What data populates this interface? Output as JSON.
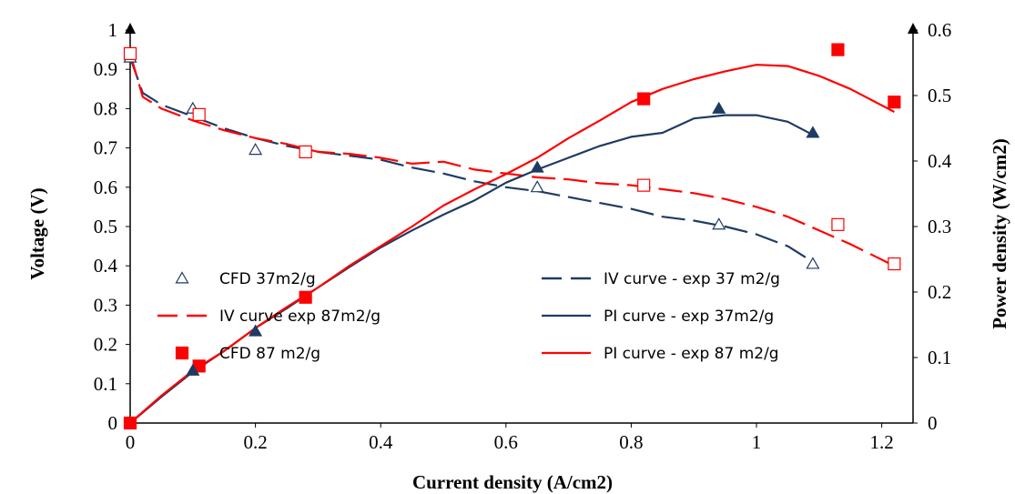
{
  "chart_data": {
    "type": "line",
    "xlabel": "Current density (A/cm2)",
    "ylabel": "Voltage (V)",
    "y2label": "Power density (W/cm2)",
    "xlim": [
      0,
      1.25
    ],
    "ylim": [
      0,
      1
    ],
    "y2lim": [
      0,
      0.6
    ],
    "xticks": [
      "0",
      "0.2",
      "0.4",
      "0.6",
      "0.8",
      "1",
      "1.2"
    ],
    "yticks": [
      "0",
      "0.1",
      "0.2",
      "0.3",
      "0.4",
      "0.5",
      "0.6",
      "0.7",
      "0.8",
      "0.9",
      "1"
    ],
    "y2ticks": [
      "0",
      "0.1",
      "0.2",
      "0.3",
      "0.4",
      "0.5",
      "0.6"
    ],
    "grid": false,
    "legend_position": "bottom-center",
    "colors": {
      "blue": "#1f3b63",
      "red": "#ff0000"
    },
    "series": [
      {
        "name": "CFD 37m2/g",
        "kind": "scatter",
        "marker": "triangle-open",
        "color": "#1f3b63",
        "axis": "left",
        "x": [
          0,
          0.1,
          0.2,
          0.28,
          0.65,
          0.94,
          1.09
        ],
        "y": [
          0.93,
          0.8,
          0.695,
          0.69,
          0.6,
          0.505,
          0.405
        ]
      },
      {
        "name": "IV curve - exp 37 m2/g",
        "kind": "line",
        "dash": "long",
        "color": "#1f3b63",
        "axis": "left",
        "x": [
          0,
          0.02,
          0.05,
          0.1,
          0.15,
          0.2,
          0.25,
          0.3,
          0.35,
          0.4,
          0.45,
          0.5,
          0.55,
          0.6,
          0.65,
          0.7,
          0.75,
          0.8,
          0.85,
          0.9,
          0.95,
          1.0,
          1.05,
          1.09
        ],
        "y": [
          0.93,
          0.84,
          0.81,
          0.78,
          0.75,
          0.725,
          0.705,
          0.69,
          0.68,
          0.67,
          0.65,
          0.635,
          0.615,
          0.6,
          0.59,
          0.575,
          0.56,
          0.545,
          0.525,
          0.515,
          0.5,
          0.48,
          0.45,
          0.41
        ]
      },
      {
        "name": "IV curve exp 87m2/g",
        "kind": "line",
        "dash": "long",
        "color": "#ff0000",
        "axis": "left",
        "x": [
          0,
          0.02,
          0.05,
          0.1,
          0.15,
          0.2,
          0.25,
          0.3,
          0.35,
          0.4,
          0.45,
          0.5,
          0.55,
          0.6,
          0.65,
          0.7,
          0.75,
          0.8,
          0.85,
          0.9,
          0.95,
          1.0,
          1.05,
          1.1,
          1.15,
          1.22
        ],
        "y": [
          0.94,
          0.83,
          0.8,
          0.77,
          0.745,
          0.725,
          0.71,
          0.69,
          0.685,
          0.675,
          0.66,
          0.665,
          0.645,
          0.635,
          0.625,
          0.62,
          0.61,
          0.605,
          0.595,
          0.585,
          0.57,
          0.55,
          0.525,
          0.49,
          0.455,
          0.4
        ]
      },
      {
        "name": "PI curve - exp 37m2/g",
        "kind": "line",
        "dash": "solid",
        "color": "#1f3b63",
        "axis": "right",
        "x": [
          0,
          0.05,
          0.1,
          0.15,
          0.2,
          0.25,
          0.3,
          0.35,
          0.4,
          0.45,
          0.5,
          0.55,
          0.6,
          0.65,
          0.7,
          0.75,
          0.8,
          0.85,
          0.9,
          0.95,
          1.0,
          1.05,
          1.09
        ],
        "y": [
          0,
          0.04,
          0.078,
          0.11,
          0.145,
          0.175,
          0.207,
          0.238,
          0.268,
          0.294,
          0.318,
          0.34,
          0.367,
          0.387,
          0.405,
          0.423,
          0.437,
          0.443,
          0.465,
          0.47,
          0.47,
          0.46,
          0.44
        ]
      },
      {
        "name": "CFD 87 m2/g",
        "kind": "scatter",
        "marker": "square",
        "color": "#ff0000",
        "axis": "right",
        "x": [
          0,
          0.11,
          0.28,
          0.82,
          1.13,
          1.22
        ],
        "y": [
          0,
          0.087,
          0.192,
          0.495,
          0.57,
          0.49
        ]
      },
      {
        "name": "PI curve - exp 87 m2/g",
        "kind": "line",
        "dash": "solid",
        "color": "#ff0000",
        "axis": "right",
        "x": [
          0,
          0.05,
          0.1,
          0.15,
          0.2,
          0.25,
          0.3,
          0.35,
          0.4,
          0.45,
          0.5,
          0.55,
          0.6,
          0.65,
          0.7,
          0.75,
          0.8,
          0.85,
          0.9,
          0.95,
          1.0,
          1.05,
          1.1,
          1.15,
          1.22
        ],
        "y": [
          0,
          0.042,
          0.08,
          0.11,
          0.145,
          0.177,
          0.207,
          0.24,
          0.27,
          0.3,
          0.332,
          0.357,
          0.38,
          0.405,
          0.435,
          0.462,
          0.49,
          0.51,
          0.525,
          0.537,
          0.547,
          0.545,
          0.53,
          0.51,
          0.475
        ]
      },
      {
        "name": "",
        "kind": "scatter",
        "marker": "triangle-filled",
        "color": "#1f3b63",
        "axis": "right",
        "x": [
          0.1,
          0.2,
          0.65,
          0.94,
          1.09
        ],
        "y": [
          0.08,
          0.14,
          0.39,
          0.48,
          0.443
        ]
      },
      {
        "name": "",
        "kind": "scatter",
        "marker": "square-open",
        "color": "#ff0000",
        "axis": "left",
        "x": [
          0,
          0.11,
          0.28,
          0.82,
          1.13,
          1.22
        ],
        "y": [
          0.94,
          0.785,
          0.69,
          0.605,
          0.505,
          0.405
        ]
      }
    ],
    "legend": [
      {
        "label": "CFD 37m2/g",
        "marker": "triangle-open",
        "color": "#1f3b63"
      },
      {
        "label": "IV curve - exp 37 m2/g",
        "marker": "dash",
        "color": "#1f3b63"
      },
      {
        "label": "IV curve exp 87m2/g",
        "marker": "dash",
        "color": "#ff0000"
      },
      {
        "label": "PI curve - exp 37m2/g",
        "marker": "line",
        "color": "#1f3b63"
      },
      {
        "label": "CFD 87 m2/g",
        "marker": "square",
        "color": "#ff0000"
      },
      {
        "label": "PI curve - exp 87 m2/g",
        "marker": "line",
        "color": "#ff0000"
      }
    ]
  }
}
